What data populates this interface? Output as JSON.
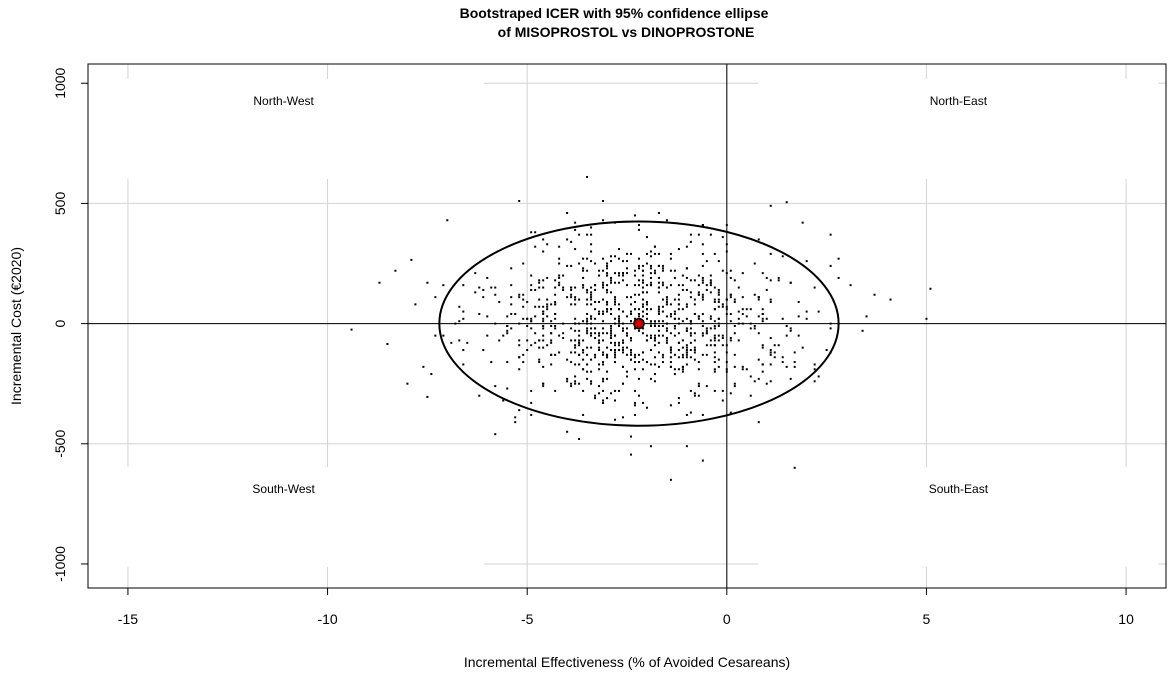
{
  "chart_data": {
    "type": "scatter",
    "title_line1": "Bootstraped ICER with 95% confidence ellipse",
    "title_line2": "of MISOPROSTOL vs DINOPROSTONE",
    "xlabel": "Incremental Effectiveness (% of Avoided Cesareans)",
    "ylabel": "Incremental Cost (€2020)",
    "xlim": [
      -16,
      11
    ],
    "ylim": [
      -1100,
      1080
    ],
    "x_ticks": [
      -15,
      -10,
      -5,
      0,
      5,
      10
    ],
    "x_tick_labels": [
      "-15",
      "-10",
      "-5",
      "0",
      "5",
      "10"
    ],
    "y_ticks": [
      -1000,
      -500,
      0,
      500,
      1000
    ],
    "y_tick_labels": [
      "-1000",
      "-500",
      "0",
      "500",
      "1000"
    ],
    "grid": true,
    "quadrants": {
      "north_west": {
        "label": "North-West",
        "x": -11.1,
        "y": 810
      },
      "north_east": {
        "label": "North-East",
        "x": 5.8,
        "y": 810
      },
      "south_west": {
        "label": "South-West",
        "x": -11.1,
        "y": -805
      },
      "south_east": {
        "label": "South-East",
        "x": 5.8,
        "y": -805
      }
    },
    "ellipse": {
      "center_x": -2.2,
      "center_y": 0,
      "semi_axis_x": 5.0,
      "semi_axis_y": 425
    },
    "point_estimate": {
      "x": -2.2,
      "y": 0,
      "color": "#cc0000"
    },
    "points_seed": 20200101,
    "points_count": 1000,
    "points_mean": [
      -2.2,
      0
    ],
    "points_sd": [
      1.95,
      175
    ],
    "outliers": [
      {
        "x": -9.4,
        "y": -25
      },
      {
        "x": -8.5,
        "y": -85
      },
      {
        "x": -7.9,
        "y": 265
      },
      {
        "x": -7.5,
        "y": -305
      },
      {
        "x": -7.3,
        "y": 110
      },
      {
        "x": -3.5,
        "y": 610
      },
      {
        "x": 1.5,
        "y": 505
      },
      {
        "x": 1.7,
        "y": -600
      },
      {
        "x": 3.1,
        "y": 160
      },
      {
        "x": 3.5,
        "y": 30
      },
      {
        "x": 4.1,
        "y": 100
      },
      {
        "x": 5.1,
        "y": 145
      },
      {
        "x": 5.0,
        "y": 20
      },
      {
        "x": -2.4,
        "y": -545
      },
      {
        "x": -5.2,
        "y": 510
      }
    ]
  }
}
